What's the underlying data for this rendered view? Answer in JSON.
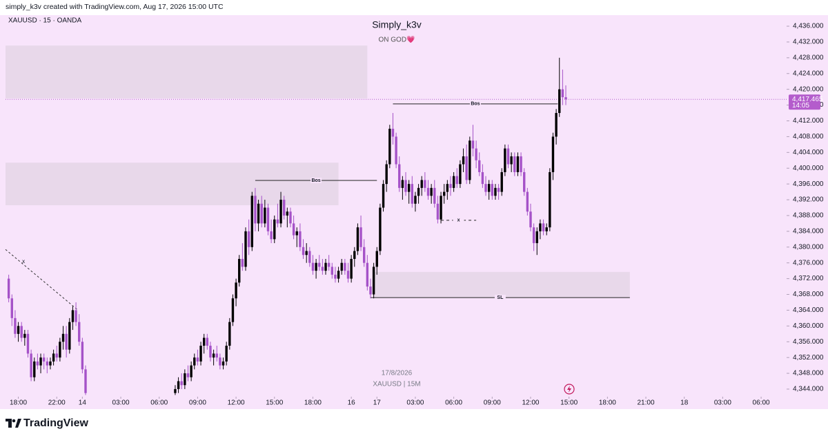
{
  "header": "simply_k3v created with TradingView.com, Aug 17, 2026 15:00 UTC",
  "footer": "TradingView",
  "chart_data": {
    "type": "candlestick",
    "symbol": "XAUUSD · 15 · OANDA",
    "title": "Simply_k3v",
    "subtitle": "ON GOD💗",
    "watermark_date": "17/8/2026",
    "watermark_symbol": "XAUUSD | 15M",
    "up_color": "#000000",
    "down_color": "#a552c8",
    "background": "#f8e4fb",
    "xlim": [
      -4,
      234.7
    ],
    "ylim": [
      4342.25,
      4438.8
    ],
    "xticks": [
      {
        "value": 0,
        "label": "18:00"
      },
      {
        "value": 12,
        "label": "22:00"
      },
      {
        "value": 20,
        "label": "14"
      },
      {
        "value": 32,
        "label": "03:00"
      },
      {
        "value": 44,
        "label": "06:00"
      },
      {
        "value": 56,
        "label": "09:00"
      },
      {
        "value": 68,
        "label": "12:00"
      },
      {
        "value": 80,
        "label": "15:00"
      },
      {
        "value": 92,
        "label": "18:00"
      },
      {
        "value": 104,
        "label": "16"
      },
      {
        "value": 112,
        "label": "17"
      },
      {
        "value": 124,
        "label": "03:00"
      },
      {
        "value": 136,
        "label": "06:00"
      },
      {
        "value": 148,
        "label": "09:00"
      },
      {
        "value": 160,
        "label": "12:00"
      },
      {
        "value": 172,
        "label": "15:00"
      },
      {
        "value": 184,
        "label": "18:00"
      },
      {
        "value": 196,
        "label": "21:00"
      },
      {
        "value": 208,
        "label": "18"
      },
      {
        "value": 220,
        "label": "03:00"
      },
      {
        "value": 232,
        "label": "06:00"
      }
    ],
    "yticks": [
      {
        "value": 4344,
        "label": "4,344.000"
      },
      {
        "value": 4348,
        "label": "4,348.000"
      },
      {
        "value": 4352,
        "label": "4,352.000"
      },
      {
        "value": 4356,
        "label": "4,356.000"
      },
      {
        "value": 4360,
        "label": "4,360.000"
      },
      {
        "value": 4364,
        "label": "4,364.000"
      },
      {
        "value": 4368,
        "label": "4,368.000"
      },
      {
        "value": 4372,
        "label": "4,372.000"
      },
      {
        "value": 4376,
        "label": "4,376.000"
      },
      {
        "value": 4380,
        "label": "4,380.000"
      },
      {
        "value": 4384,
        "label": "4,384.000"
      },
      {
        "value": 4388,
        "label": "4,388.000"
      },
      {
        "value": 4392,
        "label": "4,392.000"
      },
      {
        "value": 4396,
        "label": "4,396.000"
      },
      {
        "value": 4400,
        "label": "4,400.000"
      },
      {
        "value": 4404,
        "label": "4,404.000"
      },
      {
        "value": 4408,
        "label": "4,408.000"
      },
      {
        "value": 4412,
        "label": "4,412.000"
      },
      {
        "value": 4416,
        "label": "4,416.000"
      },
      {
        "value": 4420,
        "label": "4,420.000"
      },
      {
        "value": 4424,
        "label": "4,424.000"
      },
      {
        "value": 4428,
        "label": "4,428.000"
      },
      {
        "value": 4432,
        "label": "4,432.000"
      },
      {
        "value": 4436,
        "label": "4,436.000"
      }
    ],
    "last_price": {
      "value": 4417.465,
      "label": "4,417.465",
      "countdown": "14:05",
      "color": "#b45ccc"
    },
    "zones": [
      {
        "x": [
          -4,
          109
        ],
        "y": [
          4417.7,
          4431.1
        ],
        "color": "#e8d8ea"
      },
      {
        "x": [
          -4,
          100
        ],
        "y": [
          4390.6,
          4401.4
        ],
        "color": "#e8d8ea"
      },
      {
        "x": [
          111,
          191
        ],
        "y": [
          4367.2,
          4373.7
        ],
        "color": "#e8d8ea"
      }
    ],
    "annotations": [
      {
        "label": "Bos",
        "x": [
          74,
          112
        ],
        "y": 4396.9
      },
      {
        "label": "Bos",
        "x": [
          117,
          168.5
        ],
        "y": 4416.3
      },
      {
        "label": "SL",
        "x": [
          110,
          191
        ],
        "y": 4367.2
      },
      {
        "label": "x",
        "x": [
          132,
          143
        ],
        "y": 4386.8,
        "dashed": true
      }
    ],
    "trendline": {
      "label": "x",
      "x": [
        -4,
        18.5
      ],
      "y": [
        4379.4,
        4364.1
      ]
    },
    "candles": [
      [
        -3,
        4372,
        4373,
        4366,
        4367
      ],
      [
        -2,
        4367,
        4368,
        4360,
        4362
      ],
      [
        -1,
        4362,
        4364,
        4357,
        4358
      ],
      [
        0,
        4358,
        4361,
        4356,
        4360
      ],
      [
        1,
        4360,
        4361,
        4356,
        4357
      ],
      [
        2,
        4357,
        4359,
        4355,
        4358
      ],
      [
        3,
        4358,
        4359,
        4352,
        4353
      ],
      [
        4,
        4353,
        4354,
        4346,
        4347
      ],
      [
        5,
        4347,
        4352,
        4346,
        4351
      ],
      [
        6,
        4351,
        4353,
        4349,
        4350
      ],
      [
        7,
        4350,
        4353,
        4348,
        4352
      ],
      [
        8,
        4352,
        4353,
        4349,
        4351
      ],
      [
        9,
        4351,
        4352,
        4348,
        4350
      ],
      [
        10,
        4350,
        4352,
        4349,
        4351
      ],
      [
        11,
        4351,
        4354,
        4350,
        4353
      ],
      [
        12,
        4353,
        4355,
        4351,
        4352
      ],
      [
        13,
        4352,
        4357,
        4351,
        4356
      ],
      [
        14,
        4356,
        4360,
        4354,
        4358
      ],
      [
        15,
        4358,
        4360,
        4352,
        4354
      ],
      [
        16,
        4354,
        4362,
        4353,
        4361
      ],
      [
        17,
        4361,
        4365,
        4359,
        4364
      ],
      [
        18,
        4364,
        4366,
        4360,
        4361
      ],
      [
        19,
        4361,
        4363,
        4355,
        4356
      ],
      [
        20,
        4356,
        4357,
        4348,
        4349
      ],
      [
        21,
        4349,
        4350,
        4342.5,
        4343
      ],
      [
        49,
        4343,
        4345,
        4342.5,
        4344
      ],
      [
        50,
        4344,
        4347,
        4343,
        4346
      ],
      [
        51,
        4346,
        4348,
        4344,
        4345
      ],
      [
        52,
        4345,
        4349,
        4344,
        4348
      ],
      [
        53,
        4348,
        4350,
        4346,
        4347
      ],
      [
        54,
        4347,
        4351,
        4346,
        4350
      ],
      [
        55,
        4350,
        4353,
        4349,
        4352
      ],
      [
        56,
        4352,
        4354,
        4350,
        4351
      ],
      [
        57,
        4351,
        4356,
        4350,
        4355
      ],
      [
        58,
        4355,
        4358,
        4353,
        4357
      ],
      [
        59,
        4357,
        4358,
        4354,
        4355
      ],
      [
        60,
        4355,
        4356,
        4351,
        4352
      ],
      [
        61,
        4352,
        4354,
        4350,
        4353
      ],
      [
        62,
        4353,
        4355,
        4351,
        4352
      ],
      [
        63,
        4352,
        4353,
        4349,
        4350
      ],
      [
        64,
        4350,
        4352,
        4349,
        4351
      ],
      [
        65,
        4351,
        4356,
        4350,
        4355
      ],
      [
        66,
        4355,
        4362,
        4354,
        4361
      ],
      [
        67,
        4361,
        4368,
        4360,
        4367
      ],
      [
        68,
        4367,
        4372,
        4365,
        4371
      ],
      [
        69,
        4371,
        4378,
        4370,
        4377
      ],
      [
        70,
        4377,
        4381,
        4374,
        4375
      ],
      [
        71,
        4375,
        4385,
        4374,
        4384
      ],
      [
        72,
        4384,
        4387,
        4378,
        4380
      ],
      [
        73,
        4380,
        4394,
        4379,
        4393
      ],
      [
        74,
        4393,
        4395,
        4384,
        4386
      ],
      [
        75,
        4386,
        4392,
        4384,
        4391
      ],
      [
        76,
        4391,
        4393,
        4385,
        4386
      ],
      [
        77,
        4386,
        4392,
        4385,
        4390
      ],
      [
        78,
        4390,
        4391,
        4383,
        4384
      ],
      [
        79,
        4384,
        4387,
        4381,
        4382
      ],
      [
        80,
        4382,
        4388,
        4381,
        4387
      ],
      [
        81,
        4387,
        4391,
        4385,
        4386
      ],
      [
        82,
        4386,
        4394,
        4385,
        4392
      ],
      [
        83,
        4392,
        4393,
        4387,
        4388
      ],
      [
        84,
        4388,
        4390,
        4385,
        4389
      ],
      [
        85,
        4389,
        4390,
        4385,
        4386
      ],
      [
        86,
        4386,
        4388,
        4382,
        4383
      ],
      [
        87,
        4383,
        4385,
        4380,
        4384
      ],
      [
        88,
        4384,
        4386,
        4379,
        4380
      ],
      [
        89,
        4380,
        4382,
        4377,
        4378
      ],
      [
        90,
        4378,
        4381,
        4376,
        4379
      ],
      [
        91,
        4379,
        4380,
        4375,
        4376
      ],
      [
        92,
        4376,
        4378,
        4373,
        4374
      ],
      [
        93,
        4374,
        4377,
        4372,
        4376
      ],
      [
        94,
        4376,
        4378,
        4374,
        4375
      ],
      [
        95,
        4375,
        4377,
        4373,
        4374
      ],
      [
        96,
        4374,
        4377,
        4373,
        4376
      ],
      [
        97,
        4376,
        4378,
        4374,
        4375
      ],
      [
        98,
        4375,
        4376,
        4372,
        4373
      ],
      [
        99,
        4373,
        4375,
        4371,
        4372
      ],
      [
        100,
        4372,
        4375,
        4371,
        4374
      ],
      [
        101,
        4374,
        4377,
        4373,
        4376
      ],
      [
        102,
        4376,
        4377,
        4373,
        4374
      ],
      [
        103,
        4374,
        4376,
        4371,
        4372
      ],
      [
        104,
        4372,
        4378,
        4371,
        4377
      ],
      [
        105,
        4377,
        4380,
        4375,
        4379
      ],
      [
        106,
        4379,
        4386,
        4378,
        4385
      ],
      [
        107,
        4385,
        4388,
        4379,
        4380
      ],
      [
        108,
        4380,
        4382,
        4375,
        4376
      ],
      [
        109,
        4376,
        4378,
        4369,
        4370
      ],
      [
        110,
        4370,
        4372,
        4367,
        4368
      ],
      [
        111,
        4368,
        4376,
        4367,
        4375
      ],
      [
        112,
        4375,
        4380,
        4373,
        4379
      ],
      [
        113,
        4379,
        4391,
        4378,
        4390
      ],
      [
        114,
        4390,
        4397,
        4389,
        4396
      ],
      [
        115,
        4396,
        4402,
        4394,
        4401
      ],
      [
        116,
        4401,
        4411,
        4400,
        4410
      ],
      [
        117,
        4410,
        4414,
        4406,
        4408
      ],
      [
        118,
        4408,
        4409,
        4400,
        4401
      ],
      [
        119,
        4401,
        4403,
        4394,
        4395
      ],
      [
        120,
        4395,
        4398,
        4392,
        4397
      ],
      [
        121,
        4397,
        4399,
        4393,
        4394
      ],
      [
        122,
        4394,
        4397,
        4391,
        4396
      ],
      [
        123,
        4396,
        4398,
        4390,
        4391
      ],
      [
        124,
        4391,
        4394,
        4389,
        4393
      ],
      [
        125,
        4393,
        4396,
        4391,
        4395
      ],
      [
        126,
        4395,
        4398,
        4393,
        4397
      ],
      [
        127,
        4397,
        4399,
        4394,
        4395
      ],
      [
        128,
        4395,
        4397,
        4392,
        4393
      ],
      [
        129,
        4393,
        4396,
        4391,
        4395
      ],
      [
        130,
        4395,
        4397,
        4390,
        4391
      ],
      [
        131,
        4391,
        4393,
        4386,
        4387
      ],
      [
        132,
        4387,
        4394,
        4386,
        4393
      ],
      [
        133,
        4393,
        4396,
        4391,
        4394
      ],
      [
        134,
        4394,
        4397,
        4392,
        4396
      ],
      [
        135,
        4396,
        4398,
        4393,
        4395
      ],
      [
        136,
        4395,
        4399,
        4394,
        4398
      ],
      [
        137,
        4398,
        4400,
        4395,
        4396
      ],
      [
        138,
        4396,
        4402,
        4395,
        4401
      ],
      [
        139,
        4401,
        4405,
        4399,
        4403
      ],
      [
        140,
        4403,
        4406,
        4396,
        4397
      ],
      [
        141,
        4397,
        4408,
        4396,
        4407
      ],
      [
        142,
        4407,
        4411,
        4403,
        4405
      ],
      [
        143,
        4405,
        4407,
        4400,
        4402
      ],
      [
        144,
        4402,
        4404,
        4398,
        4399
      ],
      [
        145,
        4399,
        4401,
        4395,
        4396
      ],
      [
        146,
        4396,
        4398,
        4393,
        4394
      ],
      [
        147,
        4394,
        4397,
        4392,
        4396
      ],
      [
        148,
        4396,
        4397,
        4392,
        4393
      ],
      [
        149,
        4393,
        4396,
        4392,
        4395
      ],
      [
        150,
        4395,
        4396,
        4392,
        4394
      ],
      [
        151,
        4394,
        4400,
        4393,
        4399
      ],
      [
        152,
        4399,
        4406,
        4398,
        4405
      ],
      [
        153,
        4405,
        4406,
        4400,
        4401
      ],
      [
        154,
        4401,
        4404,
        4399,
        4403
      ],
      [
        155,
        4403,
        4404,
        4398,
        4399
      ],
      [
        156,
        4399,
        4404,
        4398,
        4403
      ],
      [
        157,
        4403,
        4404,
        4398,
        4399
      ],
      [
        158,
        4399,
        4400,
        4393,
        4394
      ],
      [
        159,
        4394,
        4395,
        4388,
        4389
      ],
      [
        160,
        4389,
        4391,
        4384,
        4385
      ],
      [
        161,
        4385,
        4386,
        4379,
        4381
      ],
      [
        162,
        4381,
        4385,
        4378,
        4384
      ],
      [
        163,
        4384,
        4387,
        4382,
        4386
      ],
      [
        164,
        4386,
        4387,
        4383,
        4384
      ],
      [
        165,
        4384,
        4386,
        4383,
        4385
      ],
      [
        166,
        4385,
        4400,
        4384,
        4399
      ],
      [
        167,
        4399,
        4409,
        4397,
        4408
      ],
      [
        168,
        4408,
        4415,
        4406,
        4414
      ],
      [
        169,
        4414,
        4428,
        4413,
        4420
      ],
      [
        170,
        4420,
        4425,
        4416,
        4418
      ],
      [
        171,
        4418,
        4421,
        4416,
        4417.465
      ]
    ]
  }
}
